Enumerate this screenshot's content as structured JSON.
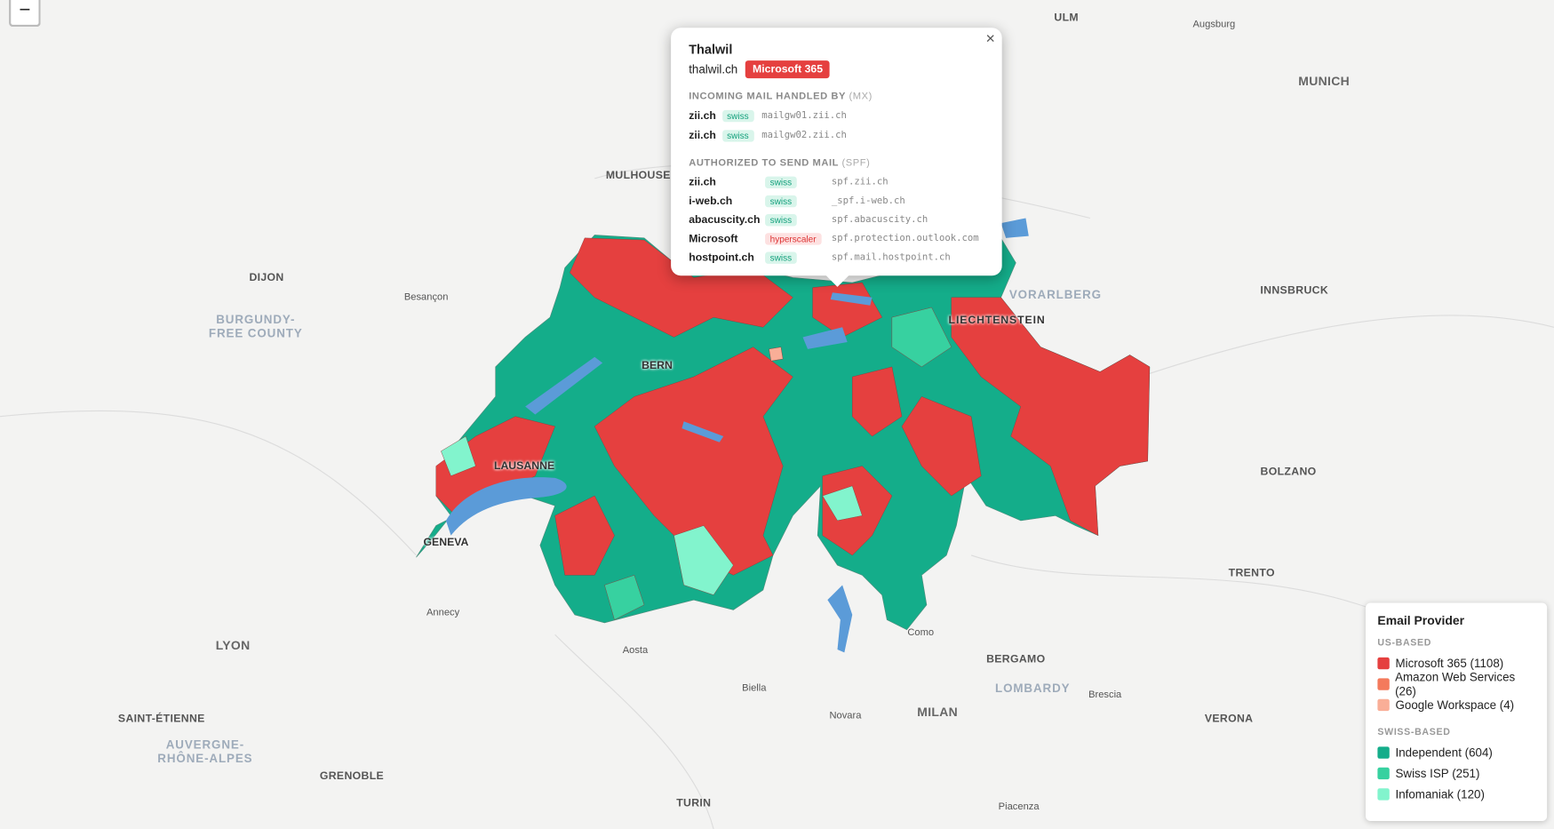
{
  "zoom_control": "−",
  "map": {
    "labels": [
      "ULM",
      "Augsburg",
      "MUNICH",
      "MULHOUSE",
      "DIJON",
      "Besançon",
      "BURGUNDY-",
      "FREE COUNTY",
      "VORARLBERG",
      "INNSBRUCK",
      "LIECHTENSTEIN",
      "BERN",
      "LAUSANNE",
      "GENEVA",
      "BOLZANO",
      "TRENTO",
      "Annecy",
      "LYON",
      "Aosta",
      "Como",
      "BERGAMO",
      "LOMBARDY",
      "Brescia",
      "Biella",
      "Novara",
      "MILAN",
      "VERONA",
      "SAINT-ÉTIENNE",
      "AUVERGNE-",
      "RHÔNE-ALPES",
      "GRENOBLE",
      "TURIN",
      "Piacenza"
    ]
  },
  "popup": {
    "close": "×",
    "title": "Thalwil",
    "domain": "thalwil.ch",
    "badge": "Microsoft 365",
    "mx_heading": "INCOMING MAIL HANDLED BY",
    "mx_tag": "(MX)",
    "mx": [
      {
        "name": "zii.ch",
        "tag": "swiss",
        "host": "mailgw01.zii.ch"
      },
      {
        "name": "zii.ch",
        "tag": "swiss",
        "host": "mailgw02.zii.ch"
      }
    ],
    "spf_heading": "AUTHORIZED TO SEND MAIL",
    "spf_tag": "(SPF)",
    "spf": [
      {
        "name": "zii.ch",
        "tag": "swiss",
        "host": "spf.zii.ch"
      },
      {
        "name": "i-web.ch",
        "tag": "swiss",
        "host": "_spf.i-web.ch"
      },
      {
        "name": "abacuscity.ch",
        "tag": "swiss",
        "host": "spf.abacuscity.ch"
      },
      {
        "name": "Microsoft",
        "tag": "hyperscaler",
        "host": "spf.protection.outlook.com"
      },
      {
        "name": "hostpoint.ch",
        "tag": "swiss",
        "host": "spf.mail.hostpoint.ch"
      }
    ]
  },
  "legend": {
    "title": "Email Provider",
    "groups": [
      {
        "heading": "US-BASED",
        "items": [
          {
            "label": "Microsoft 365 (1108)",
            "color": "#e5403f"
          },
          {
            "label": "Amazon Web Services (26)",
            "color": "#f47a5c"
          },
          {
            "label": "Google Workspace (4)",
            "color": "#f9ae97"
          }
        ]
      },
      {
        "heading": "SWISS-BASED",
        "items": [
          {
            "label": "Independent (604)",
            "color": "#14ad8a"
          },
          {
            "label": "Swiss ISP (251)",
            "color": "#37d1a0"
          },
          {
            "label": "Infomaniak (120)",
            "color": "#82f4cd"
          }
        ]
      }
    ]
  }
}
